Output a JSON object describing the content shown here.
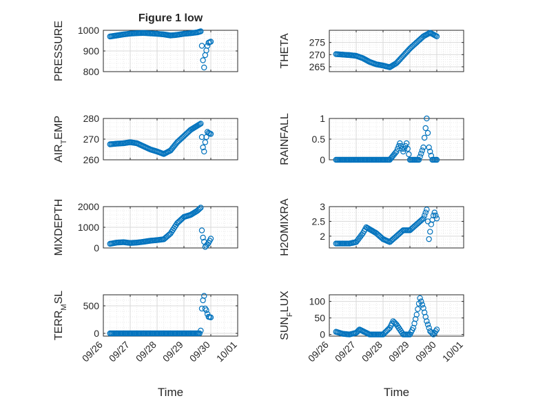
{
  "figure_title": "Figure 1 low",
  "chart_data": [
    {
      "type": "scatter",
      "ylabel": "PRESSURE",
      "xlim": [
        "09/26",
        "10/01"
      ],
      "ylim": [
        800,
        1000
      ],
      "yticks": [
        "800",
        "900",
        "1000"
      ],
      "xticks": [
        "09/26",
        "09/27",
        "09/28",
        "09/29",
        "09/30",
        "10/01"
      ],
      "grid": true,
      "series_points": [
        [
          "09/26 06:00",
          970
        ],
        [
          "09/26 12:00",
          975
        ],
        [
          "09/26 18:00",
          980
        ],
        [
          "09/27 00:00",
          984
        ],
        [
          "09/27 06:00",
          986
        ],
        [
          "09/27 12:00",
          987
        ],
        [
          "09/27 18:00",
          985
        ],
        [
          "09/28 00:00",
          983
        ],
        [
          "09/28 06:00",
          980
        ],
        [
          "09/28 12:00",
          975
        ],
        [
          "09/28 18:00",
          978
        ],
        [
          "09/29 00:00",
          983
        ],
        [
          "09/29 06:00",
          986
        ],
        [
          "09/29 12:00",
          990
        ],
        [
          "09/29 15:00",
          995
        ],
        [
          "09/29 16:00",
          925
        ],
        [
          "09/29 17:00",
          855
        ],
        [
          "09/29 18:00",
          820
        ],
        [
          "09/29 19:00",
          880
        ],
        [
          "09/29 21:00",
          925
        ],
        [
          "09/29 22:00",
          940
        ],
        [
          "09/30 00:00",
          945
        ]
      ]
    },
    {
      "type": "scatter",
      "ylabel": "THETA",
      "xlim": [
        "09/26",
        "10/01"
      ],
      "ylim": [
        263,
        280
      ],
      "yticks": [
        "265",
        "270",
        "275"
      ],
      "xticks": [
        "09/26",
        "09/27",
        "09/28",
        "09/29",
        "09/30",
        "10/01"
      ],
      "grid": true,
      "series_points": [
        [
          "09/26 06:00",
          270.2
        ],
        [
          "09/26 12:00",
          270.0
        ],
        [
          "09/26 18:00",
          269.8
        ],
        [
          "09/27 00:00",
          269.5
        ],
        [
          "09/27 06:00",
          268.5
        ],
        [
          "09/27 12:00",
          267.0
        ],
        [
          "09/27 18:00",
          266.0
        ],
        [
          "09/28 00:00",
          265.5
        ],
        [
          "09/28 06:00",
          264.8
        ],
        [
          "09/28 12:00",
          266.5
        ],
        [
          "09/28 18:00",
          269.5
        ],
        [
          "09/29 00:00",
          272.5
        ],
        [
          "09/29 06:00",
          275.0
        ],
        [
          "09/29 12:00",
          277.5
        ],
        [
          "09/29 18:00",
          279.0
        ],
        [
          "09/29 22:00",
          278.0
        ],
        [
          "09/30 00:00",
          277.5
        ]
      ]
    },
    {
      "type": "scatter",
      "ylabel": "AIR",
      "ylabel_sub": "T",
      "ylabel_rest": "EMP",
      "xlim": [
        "09/26",
        "10/01"
      ],
      "ylim": [
        260,
        280
      ],
      "yticks": [
        "260",
        "270",
        "280"
      ],
      "xticks": [
        "09/26",
        "09/27",
        "09/28",
        "09/29",
        "09/30",
        "10/01"
      ],
      "grid": true,
      "series_points": [
        [
          "09/26 06:00",
          267.5
        ],
        [
          "09/26 12:00",
          267.8
        ],
        [
          "09/26 18:00",
          268.0
        ],
        [
          "09/27 00:00",
          268.5
        ],
        [
          "09/27 06:00",
          268.0
        ],
        [
          "09/27 12:00",
          266.5
        ],
        [
          "09/27 18:00",
          265.0
        ],
        [
          "09/28 00:00",
          264.0
        ],
        [
          "09/28 06:00",
          262.8
        ],
        [
          "09/28 12:00",
          264.5
        ],
        [
          "09/28 18:00",
          268.5
        ],
        [
          "09/29 00:00",
          271.5
        ],
        [
          "09/29 06:00",
          274.5
        ],
        [
          "09/29 12:00",
          276.5
        ],
        [
          "09/29 15:00",
          277.5
        ],
        [
          "09/29 16:00",
          271.0
        ],
        [
          "09/29 17:00",
          266.0
        ],
        [
          "09/29 18:00",
          264.0
        ],
        [
          "09/29 19:00",
          268.5
        ],
        [
          "09/29 21:00",
          273.5
        ],
        [
          "09/29 22:00",
          273.0
        ],
        [
          "09/30 00:00",
          272.5
        ]
      ]
    },
    {
      "type": "scatter",
      "ylabel": "RAINFALL",
      "xlim": [
        "09/26",
        "10/01"
      ],
      "ylim": [
        0,
        1
      ],
      "yticks": [
        "0",
        "0.5",
        "1"
      ],
      "xticks": [
        "09/26",
        "09/27",
        "09/28",
        "09/29",
        "09/30",
        "10/01"
      ],
      "grid": true,
      "series_points": [
        [
          "09/26 06:00",
          0
        ],
        [
          "09/26 18:00",
          0
        ],
        [
          "09/27 06:00",
          0
        ],
        [
          "09/27 18:00",
          0
        ],
        [
          "09/28 06:00",
          0
        ],
        [
          "09/28 12:00",
          0.2
        ],
        [
          "09/28 15:00",
          0.4
        ],
        [
          "09/28 18:00",
          0.2
        ],
        [
          "09/28 21:00",
          0.4
        ],
        [
          "09/29 00:00",
          0
        ],
        [
          "09/29 08:00",
          0
        ],
        [
          "09/29 12:00",
          0.3
        ],
        [
          "09/29 15:00",
          1.0
        ],
        [
          "09/29 17:00",
          0.3
        ],
        [
          "09/29 20:00",
          0
        ],
        [
          "09/30 00:00",
          0
        ]
      ]
    },
    {
      "type": "scatter",
      "ylabel": "MIXDEPTH",
      "xlim": [
        "09/26",
        "10/01"
      ],
      "ylim": [
        0,
        2000
      ],
      "yticks": [
        "0",
        "1000",
        "2000"
      ],
      "xticks": [
        "09/26",
        "09/27",
        "09/28",
        "09/29",
        "09/30",
        "10/01"
      ],
      "grid": true,
      "series_points": [
        [
          "09/26 06:00",
          200
        ],
        [
          "09/26 12:00",
          260
        ],
        [
          "09/26 18:00",
          280
        ],
        [
          "09/27 00:00",
          240
        ],
        [
          "09/27 06:00",
          260
        ],
        [
          "09/27 12:00",
          300
        ],
        [
          "09/27 18:00",
          350
        ],
        [
          "09/28 00:00",
          380
        ],
        [
          "09/28 06:00",
          420
        ],
        [
          "09/28 12:00",
          700
        ],
        [
          "09/28 18:00",
          1200
        ],
        [
          "09/29 00:00",
          1500
        ],
        [
          "09/29 06:00",
          1600
        ],
        [
          "09/29 12:00",
          1800
        ],
        [
          "09/29 15:00",
          1950
        ],
        [
          "09/29 16:00",
          850
        ],
        [
          "09/29 17:00",
          500
        ],
        [
          "09/29 18:00",
          300
        ],
        [
          "09/29 19:00",
          50
        ],
        [
          "09/29 21:00",
          180
        ],
        [
          "09/29 22:00",
          250
        ],
        [
          "09/30 00:00",
          450
        ]
      ]
    },
    {
      "type": "scatter",
      "ylabel": "H2OMIXRA",
      "xlim": [
        "09/26",
        "10/01"
      ],
      "ylim": [
        1.6,
        3
      ],
      "yticks": [
        "2",
        "2.5",
        "3"
      ],
      "xticks": [
        "09/26",
        "09/27",
        "09/28",
        "09/29",
        "09/30",
        "10/01"
      ],
      "grid": true,
      "series_points": [
        [
          "09/26 06:00",
          1.75
        ],
        [
          "09/26 18:00",
          1.75
        ],
        [
          "09/27 00:00",
          1.8
        ],
        [
          "09/27 06:00",
          2.1
        ],
        [
          "09/27 09:00",
          2.3
        ],
        [
          "09/27 18:00",
          2.1
        ],
        [
          "09/28 00:00",
          1.9
        ],
        [
          "09/28 06:00",
          1.8
        ],
        [
          "09/28 12:00",
          2.0
        ],
        [
          "09/28 18:00",
          2.2
        ],
        [
          "09/29 00:00",
          2.2
        ],
        [
          "09/29 06:00",
          2.4
        ],
        [
          "09/29 12:00",
          2.6
        ],
        [
          "09/29 15:00",
          2.9
        ],
        [
          "09/29 16:00",
          2.5
        ],
        [
          "09/29 17:00",
          1.9
        ],
        [
          "09/29 19:00",
          2.4
        ],
        [
          "09/29 21:00",
          2.7
        ],
        [
          "09/29 22:00",
          2.8
        ],
        [
          "09/30 00:00",
          2.6
        ]
      ]
    },
    {
      "type": "scatter",
      "ylabel": "TERR",
      "ylabel_sub": "M",
      "ylabel_rest": "SL",
      "xlim": [
        "09/26",
        "10/01"
      ],
      "ylim": [
        -50,
        700
      ],
      "yticks": [
        "0",
        "500"
      ],
      "xticks": [
        "09/26",
        "09/27",
        "09/28",
        "09/29",
        "09/30",
        "10/01"
      ],
      "grid": true,
      "series_points": [
        [
          "09/26 06:00",
          0
        ],
        [
          "09/26 18:00",
          0
        ],
        [
          "09/27 06:00",
          0
        ],
        [
          "09/27 18:00",
          0
        ],
        [
          "09/28 06:00",
          0
        ],
        [
          "09/28 18:00",
          0
        ],
        [
          "09/29 06:00",
          0
        ],
        [
          "09/29 14:00",
          0
        ],
        [
          "09/29 15:00",
          50
        ],
        [
          "09/29 16:00",
          450
        ],
        [
          "09/29 17:00",
          600
        ],
        [
          "09/29 18:00",
          680
        ],
        [
          "09/29 19:00",
          450
        ],
        [
          "09/29 20:00",
          420
        ],
        [
          "09/29 21:00",
          350
        ],
        [
          "09/29 22:00",
          300
        ],
        [
          "09/30 00:00",
          290
        ]
      ]
    },
    {
      "type": "scatter",
      "ylabel": "SUN",
      "ylabel_sub": "F",
      "ylabel_rest": "LUX",
      "xlim": [
        "09/26",
        "10/01"
      ],
      "ylim": [
        -5,
        120
      ],
      "yticks": [
        "0",
        "50",
        "100"
      ],
      "xticks": [
        "09/26",
        "09/27",
        "09/28",
        "09/29",
        "09/30",
        "10/01"
      ],
      "grid": true,
      "series_points": [
        [
          "09/26 06:00",
          8
        ],
        [
          "09/26 12:00",
          2
        ],
        [
          "09/26 18:00",
          0
        ],
        [
          "09/27 00:00",
          5
        ],
        [
          "09/27 03:00",
          15
        ],
        [
          "09/27 06:00",
          10
        ],
        [
          "09/27 12:00",
          0
        ],
        [
          "09/27 18:00",
          0
        ],
        [
          "09/28 00:00",
          0
        ],
        [
          "09/28 06:00",
          20
        ],
        [
          "09/28 09:00",
          40
        ],
        [
          "09/28 12:00",
          30
        ],
        [
          "09/28 18:00",
          0
        ],
        [
          "09/29 00:00",
          0
        ],
        [
          "09/29 03:00",
          20
        ],
        [
          "09/29 06:00",
          60
        ],
        [
          "09/29 09:00",
          110
        ],
        [
          "09/29 12:00",
          80
        ],
        [
          "09/29 15:00",
          40
        ],
        [
          "09/29 18:00",
          10
        ],
        [
          "09/29 21:00",
          0
        ],
        [
          "09/30 00:00",
          15
        ]
      ]
    }
  ],
  "colors": {
    "marker": "#0072bd",
    "axis": "#262626",
    "grid": "#d9d9d9"
  },
  "xlabel": "Time"
}
